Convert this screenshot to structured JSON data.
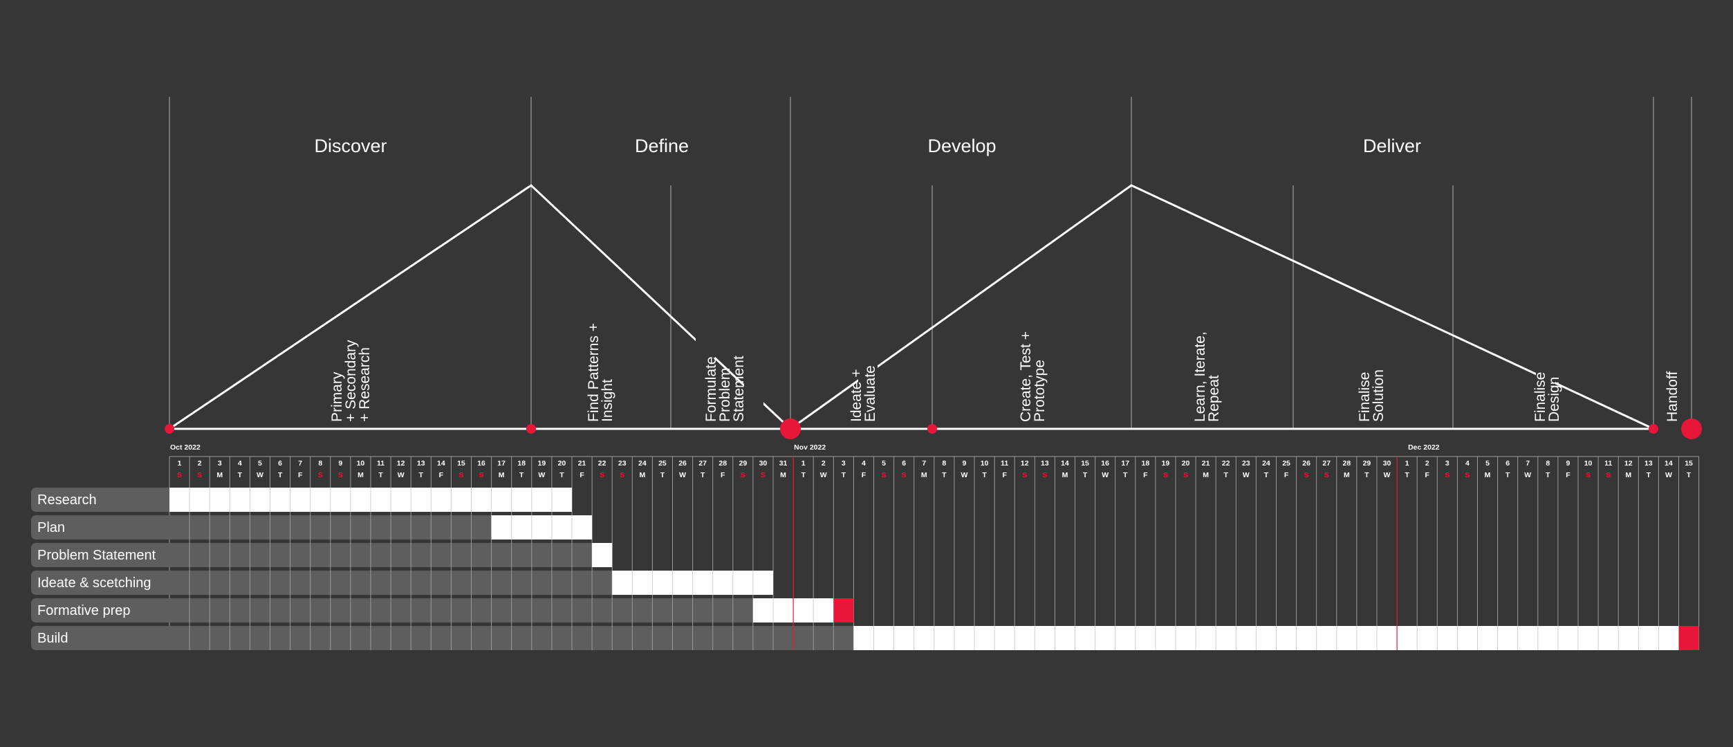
{
  "phases": [
    "Discover",
    "Define",
    "Develop",
    "Deliver"
  ],
  "activities": [
    "Primary\n+ Secondary\n+ Research",
    "Find Patterns +\nInsight",
    "Formulate\nProblem\nStatement",
    "Ideate +\nEvaluate",
    "Create, Test +\nPrototype",
    "Learn, Iterate,\nRepeat",
    "Finalise\nSolution",
    "Finalise\nDesign",
    "Handoff"
  ],
  "months": [
    "Oct 2022",
    "Nov 2022",
    "Dec 2022"
  ],
  "days": [
    {
      "n": "1",
      "d": "S"
    },
    {
      "n": "2",
      "d": "S"
    },
    {
      "n": "3",
      "d": "M"
    },
    {
      "n": "4",
      "d": "T"
    },
    {
      "n": "5",
      "d": "W"
    },
    {
      "n": "6",
      "d": "T"
    },
    {
      "n": "7",
      "d": "F"
    },
    {
      "n": "8",
      "d": "S"
    },
    {
      "n": "9",
      "d": "S"
    },
    {
      "n": "10",
      "d": "M"
    },
    {
      "n": "11",
      "d": "T"
    },
    {
      "n": "12",
      "d": "W"
    },
    {
      "n": "13",
      "d": "T"
    },
    {
      "n": "14",
      "d": "F"
    },
    {
      "n": "15",
      "d": "S"
    },
    {
      "n": "16",
      "d": "S"
    },
    {
      "n": "17",
      "d": "M"
    },
    {
      "n": "18",
      "d": "T"
    },
    {
      "n": "19",
      "d": "W"
    },
    {
      "n": "20",
      "d": "T"
    },
    {
      "n": "21",
      "d": "F"
    },
    {
      "n": "22",
      "d": "S"
    },
    {
      "n": "23",
      "d": "S"
    },
    {
      "n": "24",
      "d": "M"
    },
    {
      "n": "25",
      "d": "T"
    },
    {
      "n": "26",
      "d": "W"
    },
    {
      "n": "27",
      "d": "T"
    },
    {
      "n": "28",
      "d": "F"
    },
    {
      "n": "29",
      "d": "S"
    },
    {
      "n": "30",
      "d": "S"
    },
    {
      "n": "31",
      "d": "M"
    },
    {
      "n": "1",
      "d": "T"
    },
    {
      "n": "2",
      "d": "W"
    },
    {
      "n": "3",
      "d": "T"
    },
    {
      "n": "4",
      "d": "F"
    },
    {
      "n": "5",
      "d": "S"
    },
    {
      "n": "6",
      "d": "S"
    },
    {
      "n": "7",
      "d": "M"
    },
    {
      "n": "8",
      "d": "T"
    },
    {
      "n": "9",
      "d": "W"
    },
    {
      "n": "10",
      "d": "T"
    },
    {
      "n": "11",
      "d": "F"
    },
    {
      "n": "12",
      "d": "S"
    },
    {
      "n": "13",
      "d": "S"
    },
    {
      "n": "14",
      "d": "M"
    },
    {
      "n": "15",
      "d": "T"
    },
    {
      "n": "16",
      "d": "W"
    },
    {
      "n": "17",
      "d": "T"
    },
    {
      "n": "18",
      "d": "F"
    },
    {
      "n": "19",
      "d": "S"
    },
    {
      "n": "20",
      "d": "S"
    },
    {
      "n": "21",
      "d": "M"
    },
    {
      "n": "22",
      "d": "T"
    },
    {
      "n": "23",
      "d": "W"
    },
    {
      "n": "24",
      "d": "T"
    },
    {
      "n": "25",
      "d": "F"
    },
    {
      "n": "26",
      "d": "S"
    },
    {
      "n": "27",
      "d": "S"
    },
    {
      "n": "28",
      "d": "M"
    },
    {
      "n": "29",
      "d": "T"
    },
    {
      "n": "30",
      "d": "W"
    },
    {
      "n": "1",
      "d": "T"
    },
    {
      "n": "2",
      "d": "F"
    },
    {
      "n": "3",
      "d": "S"
    },
    {
      "n": "4",
      "d": "S"
    },
    {
      "n": "5",
      "d": "M"
    },
    {
      "n": "6",
      "d": "T"
    },
    {
      "n": "7",
      "d": "W"
    },
    {
      "n": "8",
      "d": "T"
    },
    {
      "n": "9",
      "d": "F"
    },
    {
      "n": "10",
      "d": "S"
    },
    {
      "n": "11",
      "d": "S"
    },
    {
      "n": "12",
      "d": "M"
    },
    {
      "n": "13",
      "d": "T"
    },
    {
      "n": "14",
      "d": "W"
    },
    {
      "n": "15",
      "d": "T"
    }
  ],
  "tasks": [
    {
      "label": "Research",
      "start": "2022-10-01",
      "end": "2022-10-20",
      "end_marker": false
    },
    {
      "label": "Plan",
      "start": "2022-10-17",
      "end": "2022-10-21",
      "end_marker": false
    },
    {
      "label": "Problem Statement",
      "start": "2022-10-22",
      "end": "2022-10-22",
      "end_marker": false
    },
    {
      "label": "Ideate & scetching",
      "start": "2022-10-23",
      "end": "2022-10-30",
      "end_marker": false
    },
    {
      "label": "Formative prep",
      "start": "2022-10-30",
      "end": "2022-11-02",
      "end_marker": true
    },
    {
      "label": "Build",
      "start": "2022-11-04",
      "end": "2022-12-14",
      "end_marker": true
    }
  ],
  "colors": {
    "background": "#363636",
    "accent": "#e8173a",
    "line": "#ffffff",
    "grid": "#9a9a9a",
    "label_pill": "#5e5e5e",
    "elapsed": "#5e5e5e",
    "bar": "#ffffff"
  }
}
